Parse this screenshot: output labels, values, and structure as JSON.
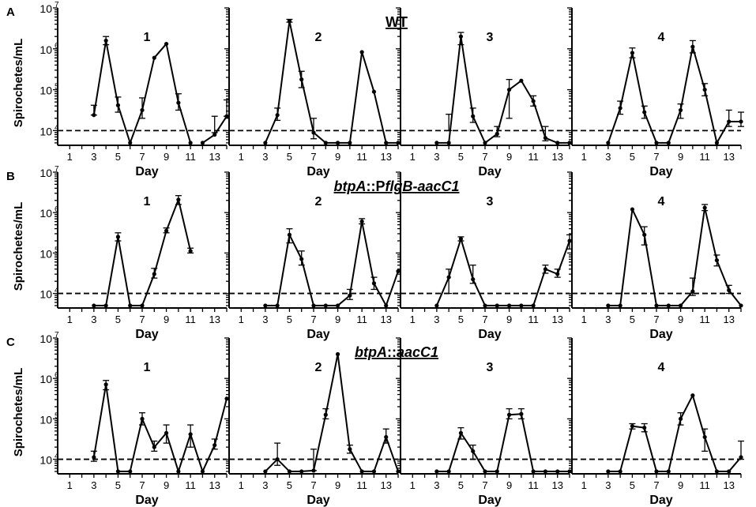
{
  "figure": {
    "ylabel": "Spirochetes/mL",
    "xlabel": "Day",
    "x_ticks": [
      "1",
      "3",
      "5",
      "7",
      "9",
      "11",
      "13"
    ],
    "y_ticks": [
      {
        "base": "10",
        "exp": "7"
      },
      {
        "base": "10",
        "exp": "6"
      },
      {
        "base": "10",
        "exp": "5"
      },
      {
        "base": "10",
        "exp": "4"
      }
    ]
  },
  "chart_data": [
    {
      "type": "line",
      "row_letter": "A",
      "title": "WT",
      "title_style": "plain",
      "ylim_log10": [
        3.64,
        7.0
      ],
      "xlim": [
        0,
        14
      ],
      "threshold_log10": 4.0,
      "panels": [
        {
          "label": "1",
          "points": [
            [
              3,
              4.38
            ],
            [
              4,
              6.2
            ],
            [
              5,
              4.62
            ],
            [
              6,
              3.7
            ],
            [
              7,
              4.5
            ],
            [
              8,
              5.78
            ],
            [
              9,
              6.12
            ],
            [
              10,
              4.68
            ],
            [
              11,
              3.7
            ],
            [
              12,
              3.7
            ],
            [
              13,
              3.9
            ],
            [
              14,
              4.35
            ]
          ],
          "errors": [
            [
              3,
              4.38,
              4.62
            ],
            [
              4,
              6.1,
              6.3
            ],
            [
              5,
              4.45,
              4.82
            ],
            [
              7,
              4.3,
              4.8
            ],
            [
              10,
              4.5,
              4.9
            ],
            [
              13,
              3.95,
              4.35
            ],
            [
              14,
              4.35,
              4.75
            ]
          ],
          "gaps": [
            [
              11,
              12
            ]
          ]
        },
        {
          "label": "2",
          "points": [
            [
              3,
              3.7
            ],
            [
              4,
              4.38
            ],
            [
              5,
              6.68
            ],
            [
              6,
              5.25
            ],
            [
              7,
              3.95
            ],
            [
              8,
              3.7
            ],
            [
              9,
              3.7
            ],
            [
              10,
              3.7
            ],
            [
              11,
              5.92
            ],
            [
              12,
              4.95
            ],
            [
              13,
              3.7
            ],
            [
              14,
              3.7
            ]
          ],
          "errors": [
            [
              4,
              4.25,
              4.55
            ],
            [
              5,
              6.65,
              6.72
            ],
            [
              6,
              5.05,
              5.45
            ],
            [
              7,
              3.8,
              4.3
            ]
          ]
        },
        {
          "label": "3",
          "points": [
            [
              3,
              3.7
            ],
            [
              4,
              3.7
            ],
            [
              5,
              6.3
            ],
            [
              6,
              4.35
            ],
            [
              7,
              3.7
            ],
            [
              8,
              3.92
            ],
            [
              9,
              5.0
            ],
            [
              10,
              5.22
            ],
            [
              11,
              4.72
            ],
            [
              12,
              3.82
            ],
            [
              13,
              3.7
            ],
            [
              14,
              3.7
            ]
          ],
          "errors": [
            [
              5,
              6.1,
              6.4
            ],
            [
              6,
              4.2,
              4.55
            ],
            [
              8,
              3.85,
              4.1
            ],
            [
              9,
              4.3,
              5.25
            ],
            [
              11,
              4.6,
              4.85
            ],
            [
              12,
              3.75,
              4.1
            ],
            [
              4,
              4.0,
              4.4
            ]
          ]
        },
        {
          "label": "4",
          "points": [
            [
              3,
              3.7
            ],
            [
              4,
              4.55
            ],
            [
              5,
              5.9
            ],
            [
              6,
              4.45
            ],
            [
              7,
              3.7
            ],
            [
              8,
              3.7
            ],
            [
              9,
              4.5
            ],
            [
              10,
              6.05
            ],
            [
              11,
              5.0
            ],
            [
              12,
              3.7
            ],
            [
              13,
              4.22
            ],
            [
              14,
              4.22
            ]
          ],
          "errors": [
            [
              4,
              4.4,
              4.72
            ],
            [
              5,
              5.78,
              6.02
            ],
            [
              6,
              4.3,
              4.6
            ],
            [
              9,
              4.3,
              4.65
            ],
            [
              10,
              5.9,
              6.2
            ],
            [
              11,
              4.85,
              5.15
            ],
            [
              13,
              4.1,
              4.5
            ],
            [
              14,
              4.1,
              4.45
            ]
          ]
        }
      ]
    },
    {
      "type": "line",
      "row_letter": "B",
      "title": "btpA::PflgB-aacC1",
      "title_style": "flgb",
      "ylim_log10": [
        3.64,
        7.0
      ],
      "xlim": [
        0,
        14
      ],
      "threshold_log10": 4.0,
      "panels": [
        {
          "label": "1",
          "points": [
            [
              3,
              3.7
            ],
            [
              4,
              3.7
            ],
            [
              5,
              5.4
            ],
            [
              6,
              3.7
            ],
            [
              7,
              3.7
            ],
            [
              8,
              4.48
            ],
            [
              9,
              5.55
            ],
            [
              10,
              6.32
            ],
            [
              11,
              5.05
            ]
          ],
          "errors": [
            [
              5,
              5.3,
              5.5
            ],
            [
              8,
              4.38,
              4.62
            ],
            [
              9,
              5.5,
              5.62
            ],
            [
              10,
              6.2,
              6.42
            ],
            [
              11,
              5.0,
              5.12
            ]
          ]
        },
        {
          "label": "2",
          "points": [
            [
              3,
              3.7
            ],
            [
              4,
              3.7
            ],
            [
              5,
              5.45
            ],
            [
              6,
              4.85
            ],
            [
              7,
              3.7
            ],
            [
              8,
              3.7
            ],
            [
              9,
              3.7
            ],
            [
              10,
              3.95
            ],
            [
              11,
              5.78
            ],
            [
              12,
              4.25
            ],
            [
              13,
              3.7
            ],
            [
              14,
              4.55
            ]
          ],
          "errors": [
            [
              5,
              5.25,
              5.6
            ],
            [
              6,
              4.7,
              5.05
            ],
            [
              10,
              3.85,
              4.1
            ],
            [
              11,
              5.72,
              5.85
            ],
            [
              12,
              4.1,
              4.4
            ]
          ]
        },
        {
          "label": "3",
          "points": [
            [
              3,
              3.7
            ],
            [
              4,
              4.4
            ],
            [
              5,
              5.35
            ],
            [
              6,
              4.35
            ],
            [
              7,
              3.7
            ],
            [
              8,
              3.7
            ],
            [
              9,
              3.7
            ],
            [
              10,
              3.7
            ],
            [
              11,
              3.7
            ],
            [
              12,
              4.6
            ],
            [
              13,
              4.48
            ],
            [
              14,
              5.3
            ]
          ],
          "errors": [
            [
              4,
              4.0,
              4.6
            ],
            [
              5,
              5.3,
              5.4
            ],
            [
              6,
              4.25,
              4.7
            ],
            [
              12,
              4.5,
              4.7
            ],
            [
              13,
              4.4,
              4.6
            ],
            [
              14,
              5.1,
              5.45
            ]
          ]
        },
        {
          "label": "4",
          "points": [
            [
              3,
              3.7
            ],
            [
              4,
              3.7
            ],
            [
              5,
              6.08
            ],
            [
              6,
              5.45
            ],
            [
              7,
              3.7
            ],
            [
              8,
              3.7
            ],
            [
              9,
              3.7
            ],
            [
              10,
              4.05
            ],
            [
              11,
              6.12
            ],
            [
              12,
              4.82
            ],
            [
              13,
              4.08
            ],
            [
              14,
              3.7
            ]
          ],
          "errors": [
            [
              6,
              5.2,
              5.65
            ],
            [
              10,
              3.95,
              4.38
            ],
            [
              11,
              6.05,
              6.2
            ],
            [
              12,
              4.68,
              4.95
            ],
            [
              13,
              4.0,
              4.2
            ]
          ]
        }
      ]
    },
    {
      "type": "line",
      "row_letter": "C",
      "title": "btpA::aacC1",
      "title_style": "aac",
      "ylim_log10": [
        3.64,
        7.0
      ],
      "xlim": [
        0,
        14
      ],
      "threshold_log10": 4.0,
      "panels": [
        {
          "label": "1",
          "points": [
            [
              3,
              4.05
            ],
            [
              4,
              5.85
            ],
            [
              5,
              3.7
            ],
            [
              6,
              3.7
            ],
            [
              7,
              5.0
            ],
            [
              8,
              4.3
            ],
            [
              9,
              4.65
            ],
            [
              10,
              3.7
            ],
            [
              11,
              4.62
            ],
            [
              12,
              3.7
            ],
            [
              13,
              4.35
            ],
            [
              14,
              5.5
            ]
          ],
          "errors": [
            [
              3,
              3.95,
              4.2
            ],
            [
              4,
              5.72,
              5.95
            ],
            [
              7,
              4.85,
              5.15
            ],
            [
              8,
              4.2,
              4.45
            ],
            [
              9,
              4.4,
              4.85
            ],
            [
              11,
              4.3,
              4.85
            ],
            [
              13,
              4.25,
              4.5
            ]
          ]
        },
        {
          "label": "2",
          "points": [
            [
              3,
              3.7
            ],
            [
              4,
              4.0
            ],
            [
              5,
              3.7
            ],
            [
              6,
              3.7
            ],
            [
              7,
              3.72
            ],
            [
              8,
              5.1
            ],
            [
              9,
              6.6
            ],
            [
              10,
              4.25
            ],
            [
              11,
              3.7
            ],
            [
              12,
              3.7
            ],
            [
              13,
              4.55
            ],
            [
              14,
              3.7
            ]
          ],
          "errors": [
            [
              4,
              3.85,
              4.4
            ],
            [
              7,
              3.72,
              4.25
            ],
            [
              8,
              5.0,
              5.25
            ],
            [
              10,
              4.15,
              4.35
            ],
            [
              13,
              4.4,
              4.75
            ]
          ]
        },
        {
          "label": "3",
          "points": [
            [
              3,
              3.7
            ],
            [
              4,
              3.7
            ],
            [
              5,
              4.65
            ],
            [
              6,
              4.2
            ],
            [
              7,
              3.7
            ],
            [
              8,
              3.7
            ],
            [
              9,
              5.1
            ],
            [
              10,
              5.12
            ],
            [
              11,
              3.7
            ],
            [
              12,
              3.7
            ],
            [
              13,
              3.7
            ],
            [
              14,
              3.7
            ]
          ],
          "errors": [
            [
              5,
              4.5,
              4.78
            ],
            [
              6,
              4.0,
              4.35
            ],
            [
              9,
              5.0,
              5.25
            ],
            [
              10,
              5.0,
              5.25
            ]
          ]
        },
        {
          "label": "4",
          "points": [
            [
              3,
              3.7
            ],
            [
              4,
              3.7
            ],
            [
              5,
              4.82
            ],
            [
              6,
              4.78
            ],
            [
              7,
              3.7
            ],
            [
              8,
              3.7
            ],
            [
              9,
              5.0
            ],
            [
              10,
              5.58
            ],
            [
              11,
              4.55
            ],
            [
              12,
              3.7
            ],
            [
              13,
              3.7
            ],
            [
              14,
              4.05
            ]
          ],
          "errors": [
            [
              5,
              4.75,
              4.88
            ],
            [
              6,
              4.68,
              4.88
            ],
            [
              9,
              4.85,
              5.15
            ],
            [
              11,
              4.2,
              4.75
            ],
            [
              14,
              4.0,
              4.45
            ]
          ]
        }
      ]
    }
  ]
}
